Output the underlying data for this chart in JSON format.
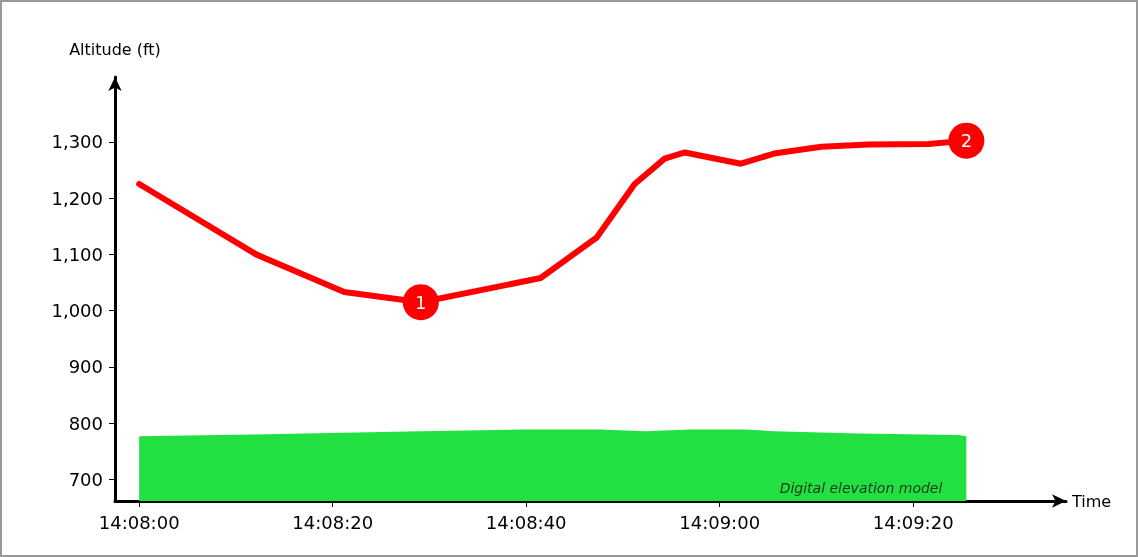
{
  "chart_data": {
    "type": "line",
    "ylabel": "Altitude (ft)",
    "xlabel": "Time",
    "xlim": [
      14.132639,
      14.159944
    ],
    "ylim": [
      662,
      1415
    ],
    "xticks": [
      {
        "value": 14.133333,
        "label": "14:08:00"
      },
      {
        "value": 14.138889,
        "label": "14:08:20"
      },
      {
        "value": 14.144444,
        "label": "14:08:40"
      },
      {
        "value": 14.15,
        "label": "14:09:00"
      },
      {
        "value": 14.155556,
        "label": "14:09:20"
      }
    ],
    "yticks": [
      {
        "value": 700,
        "label": "700"
      },
      {
        "value": 800,
        "label": "800"
      },
      {
        "value": 900,
        "label": "900"
      },
      {
        "value": 1000,
        "label": "1,000"
      },
      {
        "value": 1100,
        "label": "1,100"
      },
      {
        "value": 1200,
        "label": "1,200"
      },
      {
        "value": 1300,
        "label": "1,300"
      }
    ],
    "grid": false,
    "legend": false,
    "marker": "none",
    "line_style": "solid",
    "series": [
      {
        "type": "area",
        "name": "Digital elevation model",
        "color": "#22e042",
        "x": [
          14.133333,
          14.136556,
          14.141417,
          14.144278,
          14.146556,
          14.147861,
          14.149139,
          14.150722,
          14.151556,
          14.154,
          14.156861,
          14.157083
        ],
        "values": [
          777,
          780,
          786,
          789,
          789,
          786,
          789,
          789,
          786,
          782,
          779,
          777
        ]
      },
      {
        "color": "#ff0000",
        "x": [
          14.133333,
          14.13669,
          14.13922,
          14.14142,
          14.14486,
          14.14647,
          14.14756,
          14.14842,
          14.149,
          14.15061,
          14.15156,
          14.15292,
          14.15428,
          14.156,
          14.157083
        ],
        "values": [
          1225,
          1100,
          1033,
          1015,
          1058,
          1130,
          1225,
          1270,
          1281,
          1261,
          1279,
          1291,
          1295,
          1296,
          1302
        ]
      }
    ],
    "annotations": [
      {
        "text": "1",
        "x": 14.14142,
        "y": 1015
      },
      {
        "text": "2",
        "x": 14.157083,
        "y": 1302
      }
    ]
  }
}
